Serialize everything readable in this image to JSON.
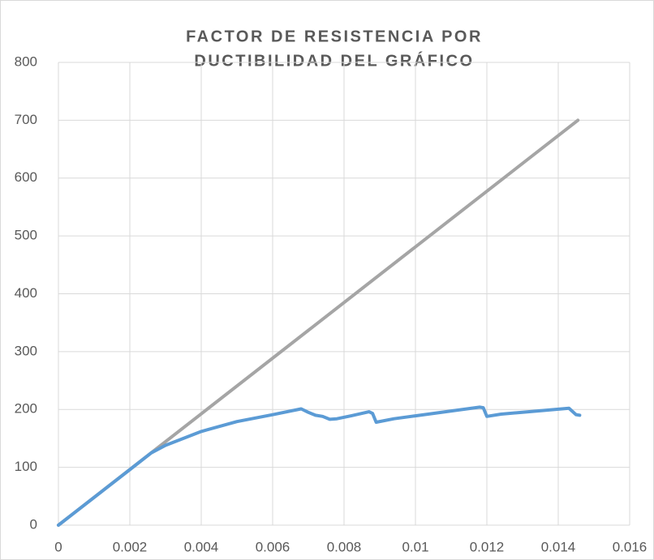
{
  "chart_data": {
    "type": "line",
    "title": [
      "FACTOR DE RESISTENCIA POR",
      "DUCTIBILIDAD DEL GRÁFICO"
    ],
    "xlim": [
      0,
      0.016
    ],
    "xticks": [
      0,
      0.002,
      0.004,
      0.006,
      0.008,
      0.01,
      0.012,
      0.014,
      0.016
    ],
    "ylim": [
      0,
      800
    ],
    "yticks": [
      0,
      100,
      200,
      300,
      400,
      500,
      600,
      700,
      800
    ],
    "grid": true,
    "series": [
      {
        "color": "#a5a5a5",
        "x": [
          0,
          0.01455
        ],
        "values": [
          0,
          700
        ]
      },
      {
        "color": "#5b9bd5",
        "x": [
          0,
          0.002,
          0.0026,
          0.003,
          0.004,
          0.005,
          0.006,
          0.0068,
          0.007,
          0.0072,
          0.0074,
          0.0076,
          0.0078,
          0.0082,
          0.0087,
          0.0088,
          0.0089,
          0.0094,
          0.01,
          0.0118,
          0.0119,
          0.012,
          0.0124,
          0.0143,
          0.0145,
          0.0146
        ],
        "values": [
          0,
          96,
          125,
          138,
          162,
          179,
          191,
          201,
          195,
          190,
          188,
          183,
          184,
          189,
          196,
          193,
          178,
          184,
          189,
          204,
          203,
          188,
          192,
          202,
          191,
          190
        ]
      }
    ]
  }
}
